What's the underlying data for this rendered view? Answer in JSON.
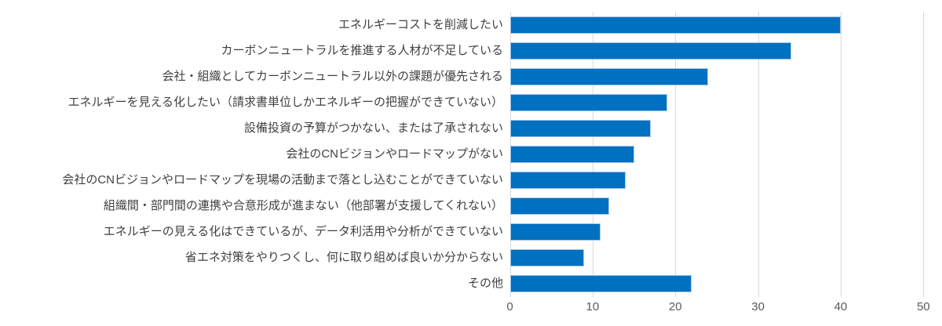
{
  "chart_data": {
    "type": "bar",
    "orientation": "horizontal",
    "title": "",
    "xlabel": "",
    "ylabel": "",
    "categories": [
      "エネルギーコストを削減したい",
      "カーボンニュートラルを推進する人材が不足している",
      "会社・組織としてカーボンニュートラル以外の課題が優先される",
      "エネルギーを見える化したい（請求書単位しかエネルギーの把握ができていない）",
      "設備投資の予算がつかない、または了承されない",
      "会社のCNビジョンやロードマップがない",
      "会社のCNビジョンやロードマップを現場の活動まで落とし込むことができていない",
      "組織間・部門間の連携や合意形成が進まない（他部署が支援してくれない）",
      "エネルギーの見える化はできているが、データ利活用や分析ができていない",
      "省エネ対策をやりつくし、何に取り組めば良いか分からない",
      "その他"
    ],
    "values": [
      40,
      34,
      24,
      19,
      17,
      15,
      14,
      12,
      11,
      9,
      22
    ],
    "xlim": [
      0,
      50
    ],
    "xticks": [
      0,
      10,
      20,
      30,
      40,
      50
    ],
    "grid": true,
    "legend": false,
    "colors": {
      "bar_fill": "#0070C0",
      "bar_border": "#9DC3E6",
      "gridline": "#D9D9D9",
      "tick_label": "#595959",
      "category_label": "#404040",
      "background": "#FFFFFF"
    }
  }
}
